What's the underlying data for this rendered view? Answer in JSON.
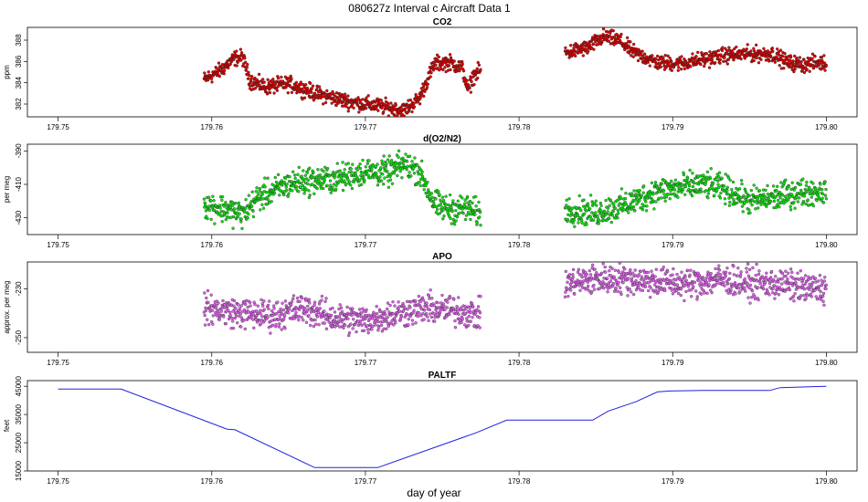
{
  "figure_title": "080627z   Interval c Aircraft Data 1",
  "x_axis_label": "day of year",
  "chart_data": [
    {
      "type": "scatter",
      "title": "CO2",
      "ylabel": "ppm",
      "color": "#e00000",
      "xlim": [
        179.75,
        179.8
      ],
      "xticks": [
        179.75,
        179.76,
        179.77,
        179.78,
        179.79,
        179.8
      ],
      "xtick_labels": [
        "179.75",
        "179.76",
        "179.77",
        "179.78",
        "179.79",
        "179.80"
      ],
      "ylim": [
        380.8,
        389.2
      ],
      "yticks": [
        382,
        384,
        386,
        388
      ],
      "ytick_labels": [
        "382",
        "384",
        "386",
        "388"
      ],
      "segments": [
        {
          "x": [
            179.7595,
            179.7605,
            179.7615,
            179.762,
            179.7625,
            179.7635,
            179.765,
            179.767,
            179.769,
            179.771,
            179.7725,
            179.7735,
            179.7745,
            179.7755,
            179.7763,
            179.7767,
            179.777,
            179.7775
          ],
          "y": [
            384.3,
            385.1,
            386.3,
            386.4,
            384.2,
            383.6,
            383.9,
            382.9,
            382.2,
            381.8,
            381.4,
            382.5,
            385.8,
            385.9,
            385.4,
            383.2,
            384.6,
            385.2
          ]
        },
        {
          "x": [
            179.783,
            179.7845,
            179.7855,
            179.7865,
            179.7875,
            179.789,
            179.7905,
            179.792,
            179.7935,
            179.795,
            179.7965,
            179.7975,
            179.7985,
            179.7995,
            179.8
          ],
          "y": [
            386.8,
            387.3,
            388.3,
            388.0,
            386.8,
            385.9,
            385.8,
            386.2,
            386.6,
            386.7,
            386.7,
            385.9,
            385.7,
            385.9,
            385.8
          ]
        }
      ],
      "noise": 0.35
    },
    {
      "type": "scatter",
      "title": "d(O2/N2)",
      "ylabel": "per meg",
      "color": "#10e010",
      "xlim": [
        179.75,
        179.8
      ],
      "xticks": [
        179.75,
        179.76,
        179.77,
        179.78,
        179.79,
        179.8
      ],
      "xtick_labels": [
        "179.75",
        "179.76",
        "179.77",
        "179.78",
        "179.79",
        "179.80"
      ],
      "ylim": [
        -440,
        -386
      ],
      "yticks": [
        -390,
        -410,
        -430
      ],
      "ytick_labels": [
        "-390",
        "-410",
        "-430"
      ],
      "segments": [
        {
          "x": [
            179.7595,
            179.761,
            179.762,
            179.763,
            179.765,
            179.766,
            179.768,
            179.77,
            179.7715,
            179.7725,
            179.7735,
            179.7745,
            179.7755,
            179.7765,
            179.7775
          ],
          "y": [
            -422,
            -425,
            -428,
            -418,
            -410,
            -408,
            -407,
            -402,
            -403,
            -398,
            -402,
            -422,
            -425,
            -424,
            -428
          ]
        },
        {
          "x": [
            179.783,
            179.785,
            179.787,
            179.789,
            179.7905,
            179.792,
            179.7935,
            179.795,
            179.7965,
            179.798,
            179.8
          ],
          "y": [
            -425,
            -427,
            -422,
            -414,
            -412,
            -410,
            -413,
            -420,
            -418,
            -415,
            -414
          ]
        }
      ],
      "noise": 4
    },
    {
      "type": "scatter",
      "title": "APO",
      "ylabel": "approx. per meg",
      "color": "#e060ee",
      "xlim": [
        179.75,
        179.8
      ],
      "xticks": [
        179.75,
        179.76,
        179.77,
        179.78,
        179.79,
        179.8
      ],
      "xtick_labels": [
        "179.75",
        "179.76",
        "179.77",
        "179.78",
        "179.79",
        "179.80"
      ],
      "ylim": [
        -256,
        -219
      ],
      "yticks": [
        -230,
        -250
      ],
      "ytick_labels": [
        "-230",
        "-250"
      ],
      "segments": [
        {
          "x": [
            179.7595,
            179.762,
            179.764,
            179.766,
            179.768,
            179.77,
            179.772,
            179.774,
            179.776,
            179.7775
          ],
          "y": [
            -238,
            -240,
            -241,
            -238,
            -242,
            -243,
            -240,
            -238,
            -239,
            -241
          ]
        },
        {
          "x": [
            179.783,
            179.785,
            179.787,
            179.789,
            179.791,
            179.793,
            179.795,
            179.797,
            179.799,
            179.8
          ],
          "y": [
            -228,
            -226,
            -226,
            -227,
            -228,
            -226,
            -228,
            -228,
            -230,
            -230
          ]
        }
      ],
      "noise": 3
    },
    {
      "type": "line",
      "title": "PALTF",
      "ylabel": "feet",
      "color": "#2020e0",
      "xlim": [
        179.75,
        179.8
      ],
      "xticks": [
        179.75,
        179.76,
        179.77,
        179.78,
        179.79,
        179.8
      ],
      "xtick_labels": [
        "179.75",
        "179.76",
        "179.77",
        "179.78",
        "179.79",
        "179.80"
      ],
      "ylim": [
        15000,
        47000
      ],
      "yticks": [
        15000,
        25000,
        35000,
        45000
      ],
      "ytick_labels": [
        "15000",
        "25000",
        "35000",
        "45000"
      ],
      "x": [
        179.75,
        179.7541,
        179.761,
        179.7615,
        179.7667,
        179.7708,
        179.7772,
        179.7792,
        179.7848,
        179.7858,
        179.7876,
        179.789,
        179.7898,
        179.792,
        179.7963,
        179.797,
        179.8
      ],
      "y": [
        44000,
        44000,
        29800,
        29600,
        16200,
        16200,
        28500,
        33000,
        33000,
        36200,
        39500,
        43000,
        43300,
        43500,
        43500,
        44500,
        45000
      ]
    }
  ]
}
